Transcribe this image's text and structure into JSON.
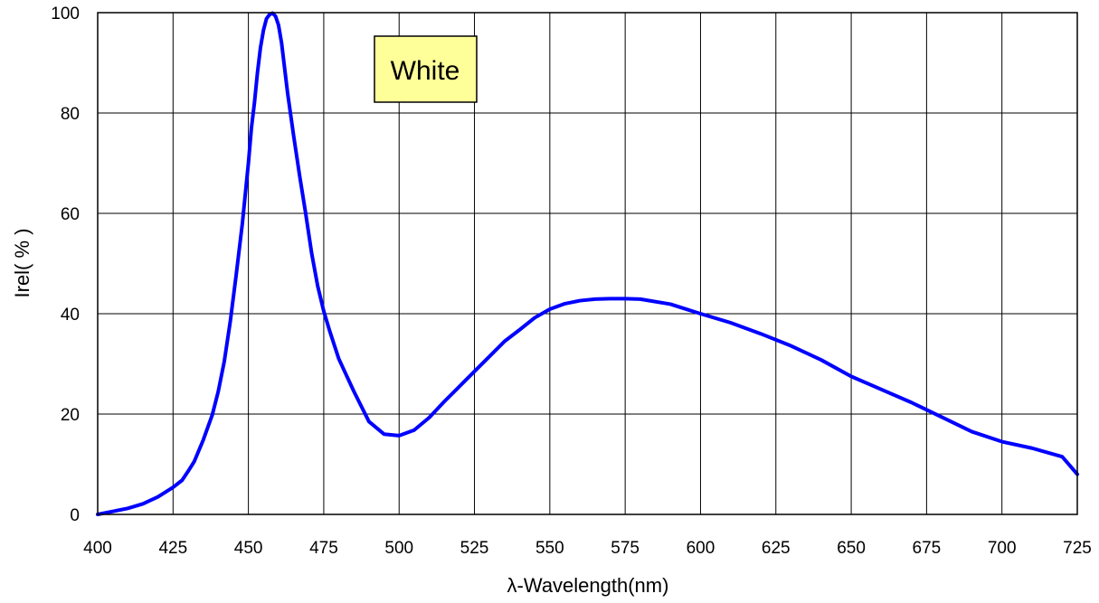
{
  "chart_data": {
    "type": "line",
    "xlabel": "λ-Wavelength(nm)",
    "ylabel": "Irel( % )",
    "xlim": [
      400,
      725
    ],
    "ylim": [
      0,
      100
    ],
    "x_ticks": [
      400,
      425,
      450,
      475,
      500,
      525,
      550,
      575,
      600,
      625,
      650,
      675,
      700,
      725
    ],
    "y_ticks": [
      0,
      20,
      40,
      60,
      80,
      100
    ],
    "grid": true,
    "annotation": "White",
    "colors": {
      "line": "#0000ff",
      "annotation_fill": "#ffff99",
      "grid": "#000000"
    },
    "series": [
      {
        "x": [
          400,
          405,
          410,
          415,
          420,
          425,
          428,
          430,
          432,
          435,
          438,
          440,
          442,
          444,
          446,
          448,
          449,
          450,
          451,
          452,
          453,
          454,
          455,
          456,
          457,
          458,
          459,
          460,
          461,
          462,
          463,
          465,
          467,
          469,
          471,
          473,
          475,
          477,
          480,
          485,
          490,
          495,
          500,
          505,
          510,
          515,
          520,
          525,
          530,
          535,
          540,
          545,
          550,
          555,
          560,
          565,
          570,
          575,
          580,
          590,
          600,
          610,
          620,
          630,
          640,
          650,
          660,
          670,
          680,
          690,
          700,
          710,
          720,
          725
        ],
        "y": [
          0,
          0.6,
          1.2,
          2.1,
          3.5,
          5.4,
          6.8,
          8.6,
          10.5,
          14.8,
          19.8,
          24.5,
          30.5,
          38.5,
          48,
          58,
          64,
          70,
          77,
          82,
          88,
          93,
          96.5,
          98.8,
          99.6,
          99.9,
          99.3,
          97.5,
          94,
          89,
          84,
          75.5,
          67.5,
          60,
          52,
          45.5,
          40.5,
          36.5,
          31,
          24.5,
          18.5,
          16,
          15.7,
          16.8,
          19.3,
          22.5,
          25.5,
          28.5,
          31.5,
          34.5,
          36.8,
          39.2,
          40.9,
          42,
          42.6,
          42.9,
          43,
          43,
          42.9,
          41.9,
          40,
          38.2,
          36,
          33.6,
          30.8,
          27.5,
          24.9,
          22.3,
          19.4,
          16.5,
          14.5,
          13.2,
          11.5,
          8
        ]
      }
    ]
  }
}
